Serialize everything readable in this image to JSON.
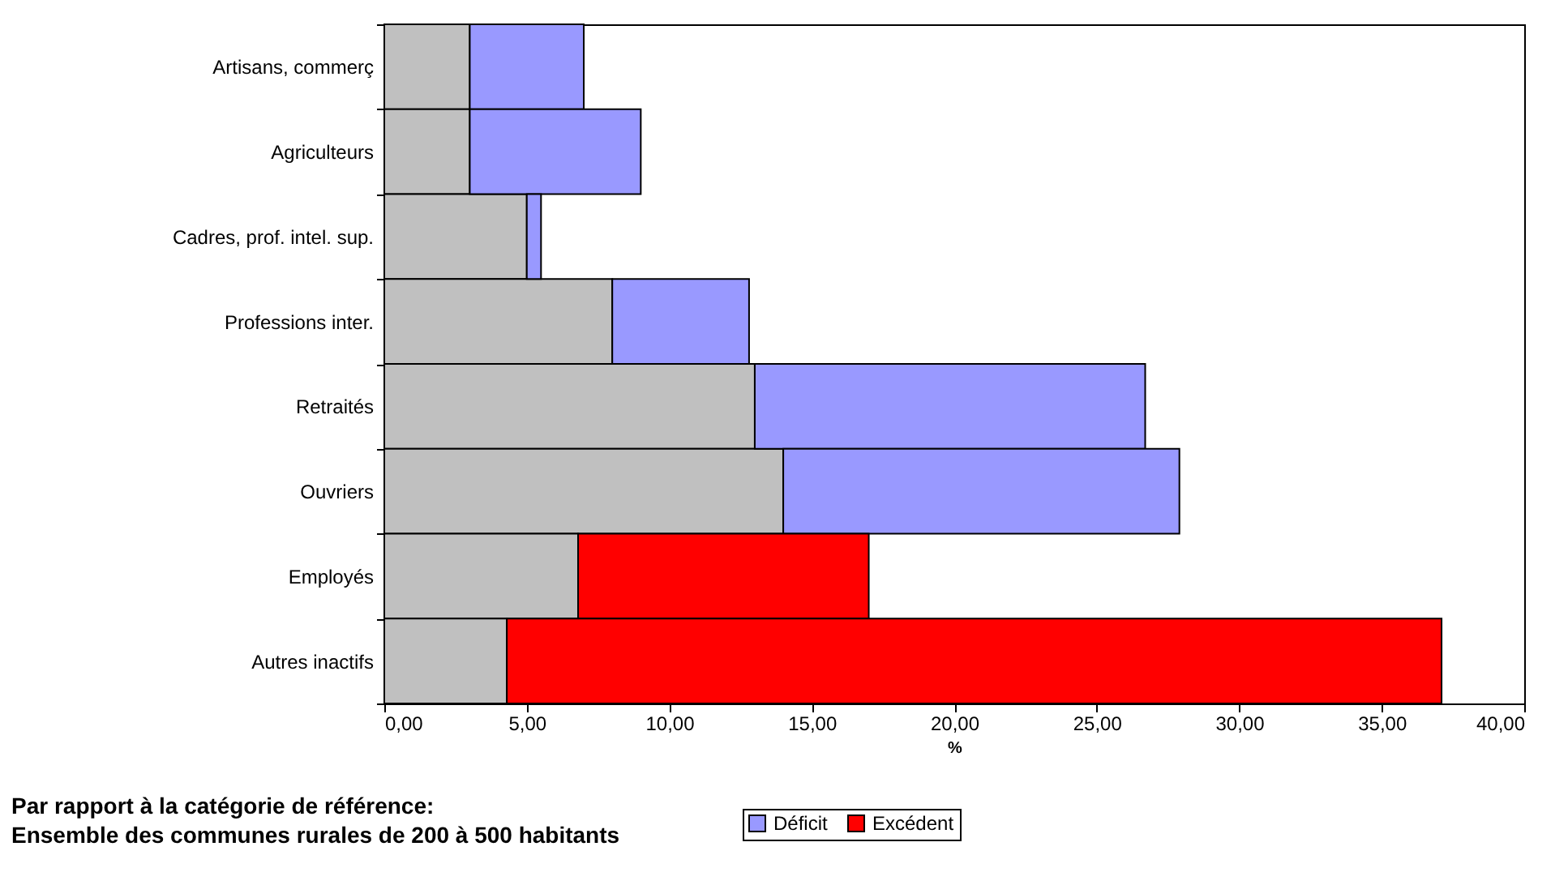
{
  "chart_data": {
    "type": "bar",
    "orientation": "horizontal",
    "stacked": true,
    "categories": [
      "Artisans, commerç",
      "Agriculteurs",
      "Cadres, prof. intel. sup.",
      "Professions inter.",
      "Retraités",
      "Ouvriers",
      "Employés",
      "Autres inactifs"
    ],
    "series": [
      {
        "color": "#c0c0c0",
        "values": [
          3.0,
          3.0,
          5.0,
          8.0,
          13.0,
          14.0,
          6.8,
          4.3
        ]
      },
      {
        "name": "Déficit",
        "color": "#9999ff",
        "values": [
          4.0,
          6.0,
          0.5,
          4.8,
          13.7,
          13.9,
          null,
          null
        ]
      },
      {
        "name": "Excédent",
        "color": "#ff0000",
        "values": [
          null,
          null,
          null,
          null,
          null,
          null,
          10.2,
          32.8
        ]
      }
    ],
    "xlim": [
      0,
      40
    ],
    "xticks": [
      {
        "value": 0,
        "label": "0,00"
      },
      {
        "value": 5,
        "label": "5,00"
      },
      {
        "value": 10,
        "label": "10,00"
      },
      {
        "value": 15,
        "label": "15,00"
      },
      {
        "value": 20,
        "label": "20,00"
      },
      {
        "value": 25,
        "label": "25,00"
      },
      {
        "value": 30,
        "label": "30,00"
      },
      {
        "value": 35,
        "label": "35,00"
      },
      {
        "value": 40,
        "label": "40,00"
      }
    ],
    "xlabel": "%",
    "annotations": [
      "Par rapport à la catégorie de référence:",
      "Ensemble des communes rurales de 200 à 500 habitants"
    ],
    "legend": "bottom",
    "grid": false
  }
}
